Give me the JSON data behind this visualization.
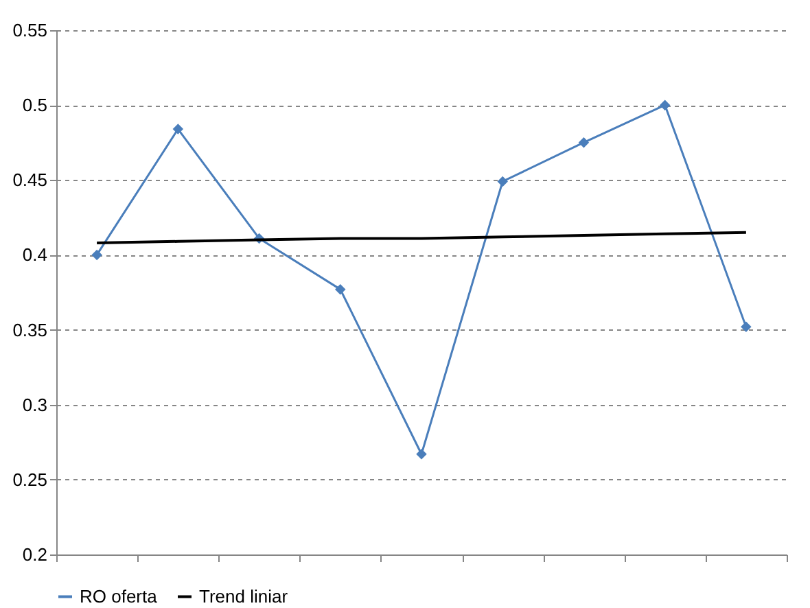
{
  "chart_data": {
    "type": "line",
    "categories": [
      null,
      null,
      null,
      null,
      null,
      null,
      null,
      null,
      null
    ],
    "series": [
      {
        "name": "RO oferta",
        "color": "#4a7ebb",
        "marker": "diamond",
        "values": [
          0.4,
          0.484,
          0.411,
          0.377,
          0.267,
          0.449,
          0.475,
          0.5,
          0.352
        ]
      },
      {
        "name": "Trend liniar",
        "color": "#000000",
        "marker": "none",
        "values": [
          0.408,
          0.409,
          0.41,
          0.411,
          0.411,
          0.412,
          0.413,
          0.414,
          0.415
        ]
      }
    ],
    "ylim": [
      0.2,
      0.55
    ],
    "yticks": [
      0.2,
      0.25,
      0.3,
      0.35,
      0.4,
      0.45,
      0.5,
      0.55
    ],
    "grid": "y",
    "legend": "bottom"
  }
}
